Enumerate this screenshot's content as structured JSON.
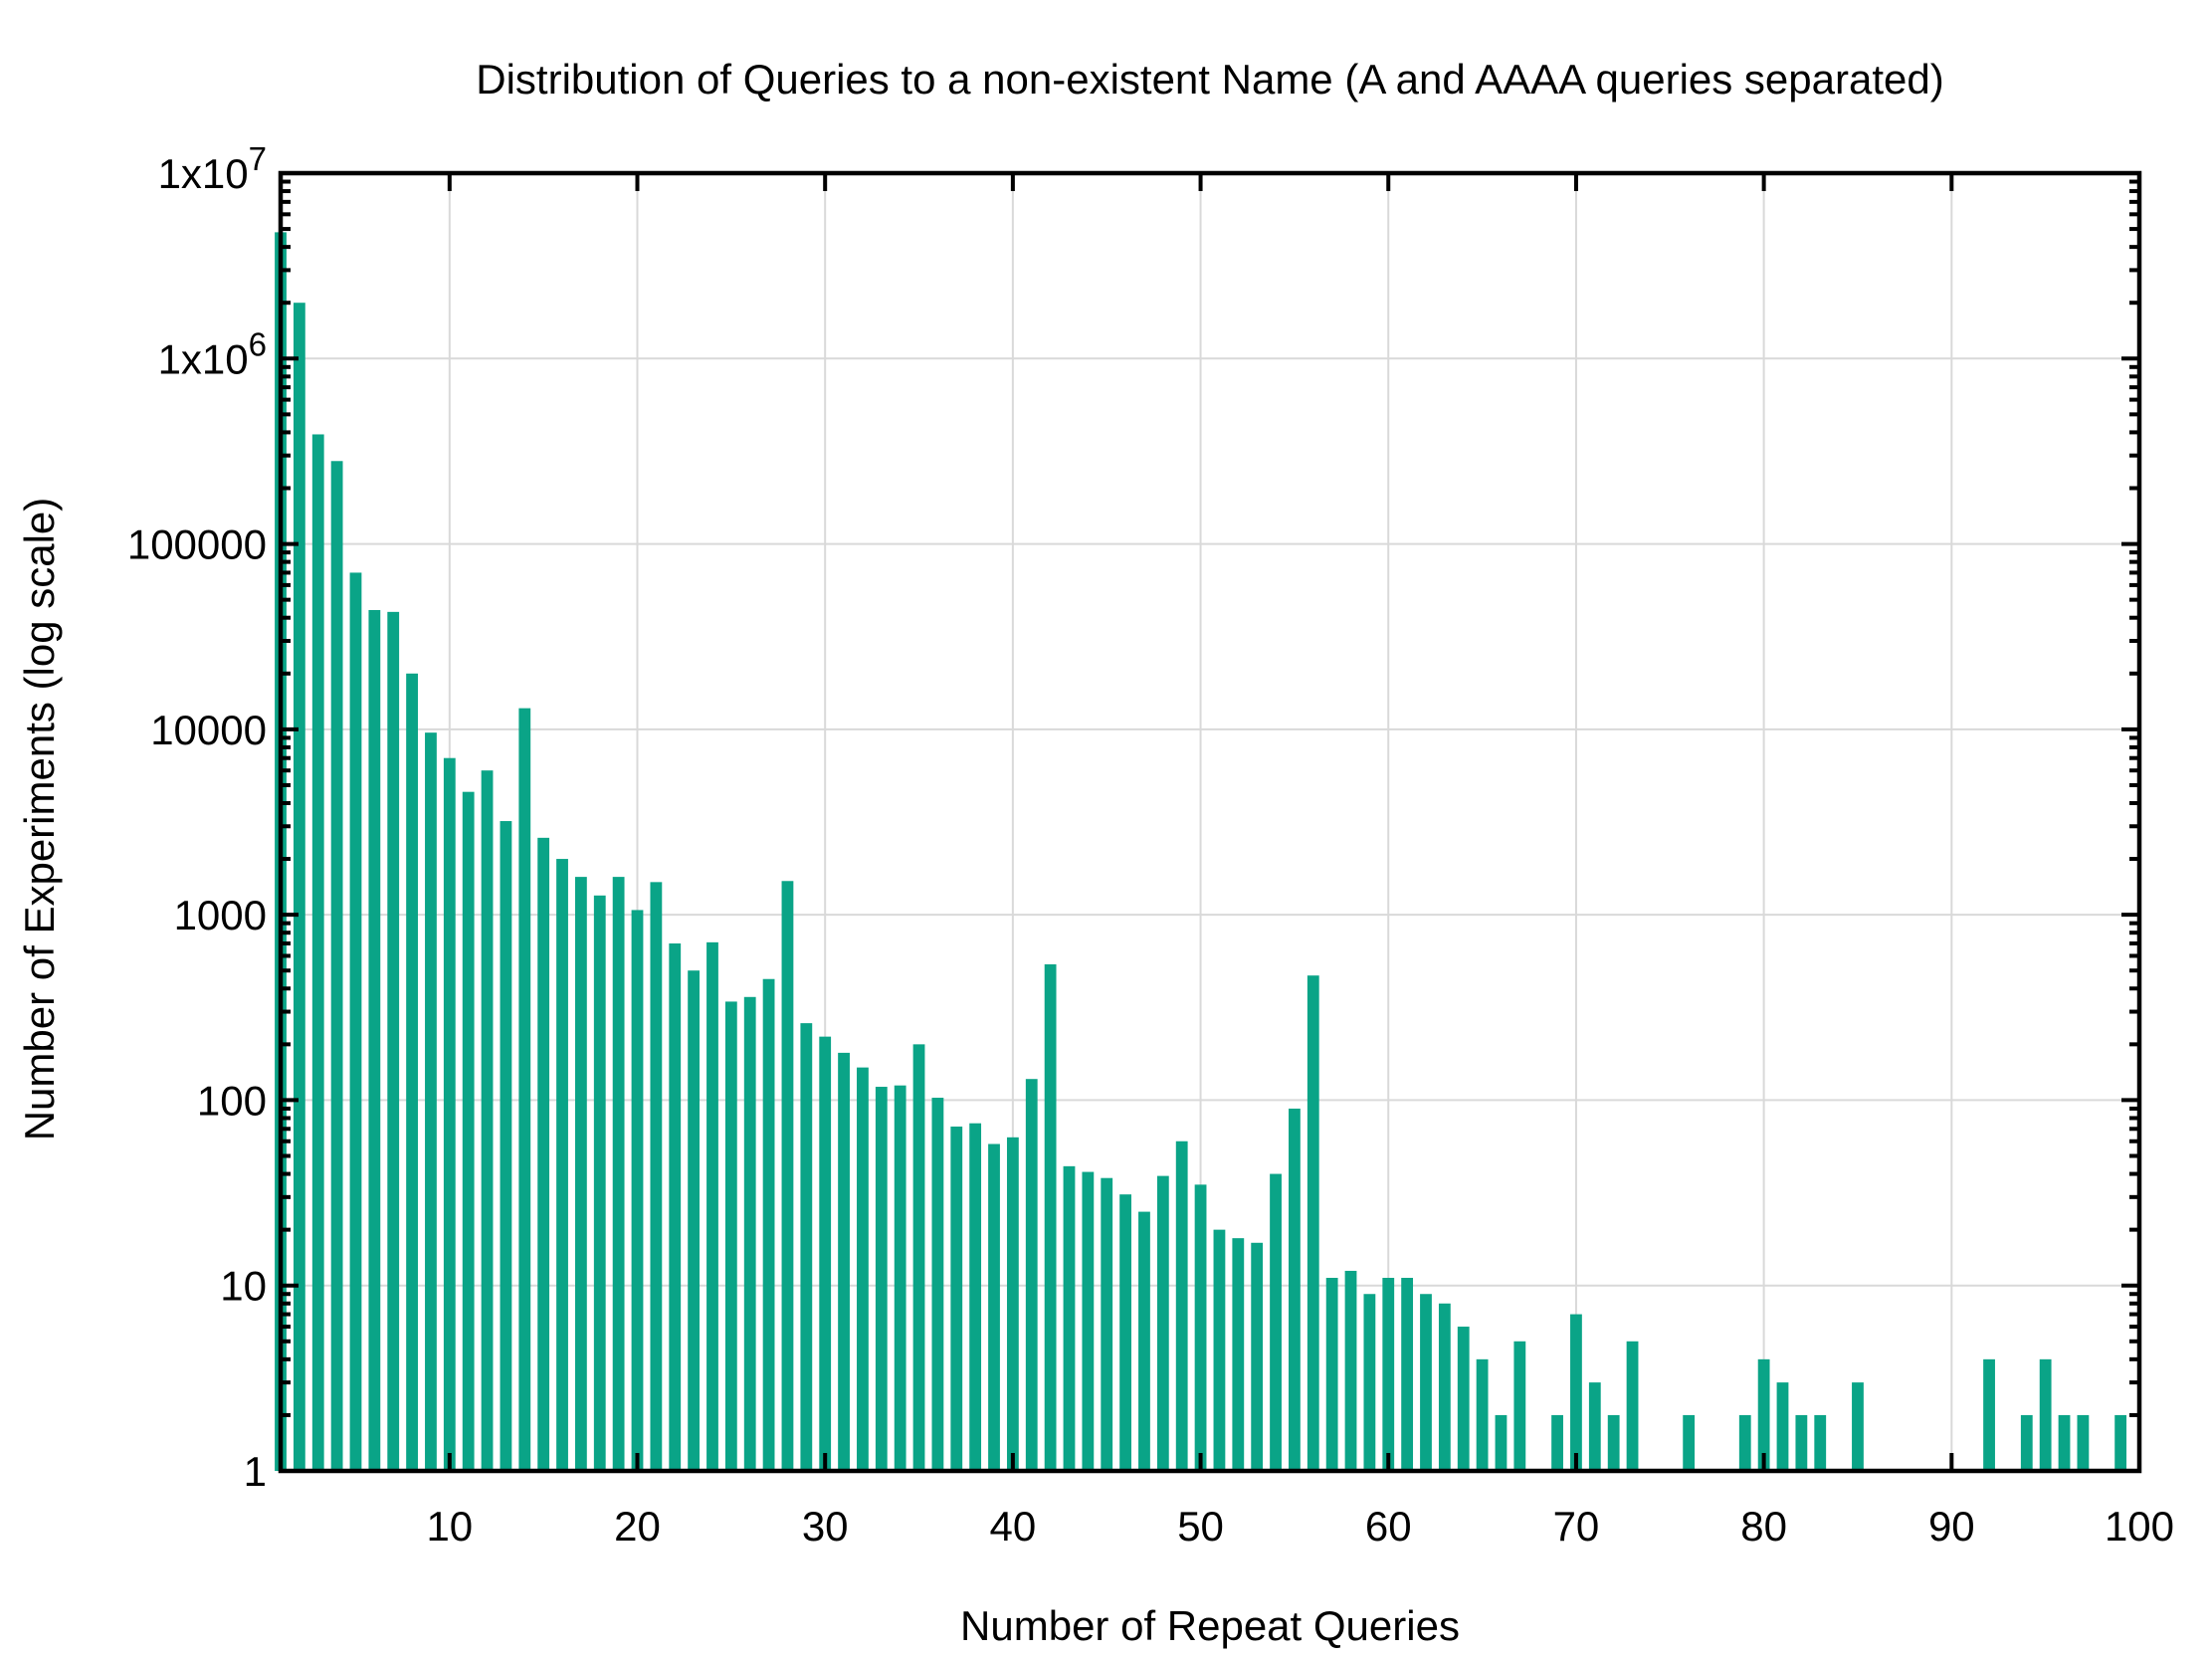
{
  "title": "Distribution of Queries to a non-existent Name (A and AAAA queries separated)",
  "chart_data": {
    "type": "bar",
    "title": "Distribution of Queries to a non-existent Name (A and AAAA queries separated)",
    "xlabel": "Number of Repeat Queries",
    "ylabel": "Number of Experiments (log scale)",
    "y_scale": "log10",
    "ylim": [
      1,
      10000000
    ],
    "xlim": [
      1,
      100
    ],
    "grid": true,
    "legend": "none",
    "bar_color": "#0aa487",
    "grid_color": "#d9d9d9",
    "axis_color": "#000000",
    "background_color": "#ffffff",
    "x_ticks": [
      10,
      20,
      30,
      40,
      50,
      60,
      70,
      80,
      90,
      100
    ],
    "y_ticks": [
      {
        "value": 1,
        "label": "1",
        "exponent": ""
      },
      {
        "value": 10,
        "label": "10",
        "exponent": ""
      },
      {
        "value": 100,
        "label": "100",
        "exponent": ""
      },
      {
        "value": 1000,
        "label": "1000",
        "exponent": ""
      },
      {
        "value": 10000,
        "label": "10000",
        "exponent": ""
      },
      {
        "value": 100000,
        "label": "100000",
        "exponent": ""
      },
      {
        "value": 1000000,
        "label": "1x10",
        "exponent": "6"
      },
      {
        "value": 10000000,
        "label": "1x10",
        "exponent": "7"
      }
    ],
    "x": [
      1,
      2,
      3,
      4,
      5,
      6,
      7,
      8,
      9,
      10,
      11,
      12,
      13,
      14,
      15,
      16,
      17,
      18,
      19,
      20,
      21,
      22,
      23,
      24,
      25,
      26,
      27,
      28,
      29,
      30,
      31,
      32,
      33,
      34,
      35,
      36,
      37,
      38,
      39,
      40,
      41,
      42,
      43,
      44,
      45,
      46,
      47,
      48,
      49,
      50,
      51,
      52,
      53,
      54,
      55,
      56,
      57,
      58,
      59,
      60,
      61,
      62,
      63,
      64,
      65,
      66,
      67,
      68,
      69,
      70,
      71,
      72,
      73,
      74,
      75,
      76,
      77,
      78,
      79,
      80,
      81,
      82,
      83,
      84,
      85,
      86,
      87,
      88,
      89,
      90,
      91,
      92,
      93,
      94,
      95,
      96,
      97,
      98,
      99,
      100
    ],
    "values": [
      4800000,
      2000000,
      390000,
      280000,
      70000,
      44000,
      43000,
      20000,
      9600,
      7000,
      4600,
      6000,
      3200,
      13000,
      2600,
      2000,
      1600,
      1270,
      1600,
      1060,
      1500,
      700,
      500,
      710,
      340,
      360,
      450,
      1520,
      260,
      220,
      180,
      150,
      118,
      120,
      200,
      103,
      72,
      75,
      58,
      63,
      130,
      540,
      44,
      41,
      38,
      31,
      25,
      39,
      60,
      35,
      20,
      18,
      17,
      40,
      90,
      470,
      11,
      12,
      9,
      11,
      11,
      9,
      8,
      6,
      4,
      2,
      5,
      0,
      2,
      7,
      3,
      2,
      5,
      0,
      0,
      2,
      0,
      0,
      2,
      4,
      3,
      2,
      2,
      0,
      3,
      0,
      0,
      0,
      0,
      0,
      0,
      4,
      0,
      2,
      4,
      2,
      2,
      0,
      2,
      0
    ]
  }
}
